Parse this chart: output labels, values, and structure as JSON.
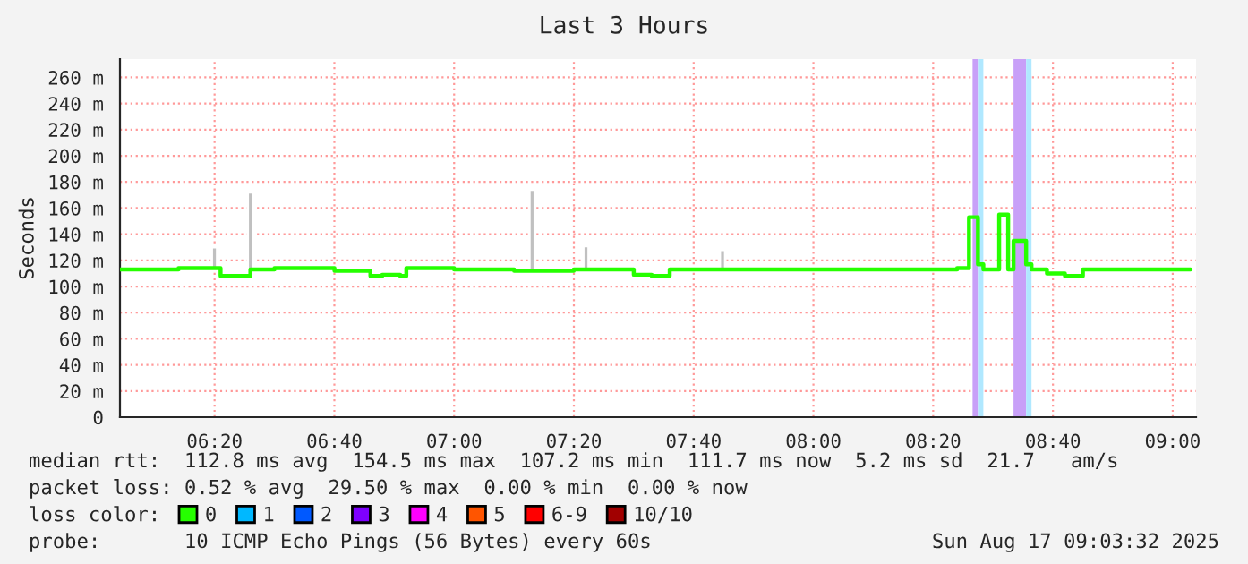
{
  "chart_data": {
    "type": "step",
    "title": "Last 3 Hours",
    "ylabel": "Seconds",
    "xlim": [
      6.07,
      9.065
    ],
    "ylim": [
      0,
      274
    ],
    "xticks": [
      {
        "value": 6.3333,
        "label": "06:20"
      },
      {
        "value": 6.6667,
        "label": "06:40"
      },
      {
        "value": 7.0,
        "label": "07:00"
      },
      {
        "value": 7.3333,
        "label": "07:20"
      },
      {
        "value": 7.6667,
        "label": "07:40"
      },
      {
        "value": 8.0,
        "label": "08:00"
      },
      {
        "value": 8.3333,
        "label": "08:20"
      },
      {
        "value": 8.6667,
        "label": "08:40"
      },
      {
        "value": 9.0,
        "label": "09:00"
      }
    ],
    "yticks": [
      0,
      {
        "value": 20,
        "label": "20 m"
      },
      {
        "value": 40,
        "label": "40 m"
      },
      {
        "value": 60,
        "label": "60 m"
      },
      {
        "value": 80,
        "label": "80 m"
      },
      {
        "value": 100,
        "label": "100 m"
      },
      {
        "value": 120,
        "label": "120 m"
      },
      {
        "value": 140,
        "label": "140 m"
      },
      {
        "value": 160,
        "label": "160 m"
      },
      {
        "value": 180,
        "label": "180 m"
      },
      {
        "value": 200,
        "label": "200 m"
      },
      {
        "value": 220,
        "label": "220 m"
      },
      {
        "value": 240,
        "label": "240 m"
      },
      {
        "value": 260,
        "label": "260 m"
      }
    ],
    "grid": true,
    "legend": "bottom",
    "legend_title": "loss color:",
    "bands": [
      {
        "axis": "x",
        "from": 8.443,
        "to": 8.458,
        "color": "#c8a0f8"
      },
      {
        "axis": "x",
        "from": 8.458,
        "to": 8.473,
        "color": "#b0e8ff"
      },
      {
        "axis": "x",
        "from": 8.557,
        "to": 8.592,
        "color": "#c8a0f8"
      },
      {
        "axis": "x",
        "from": 8.592,
        "to": 8.607,
        "color": "#b0e8ff"
      }
    ],
    "series": [
      {
        "type": "bar",
        "color": "#c0c0c0",
        "x": [
          6.333,
          6.433,
          7.217,
          7.367,
          7.747
        ],
        "base": [
          112,
          112,
          112,
          112,
          112
        ],
        "values": [
          18,
          60,
          62,
          19,
          16
        ]
      },
      {
        "name": "0",
        "color": "#26ff00",
        "x": [
          6.07,
          6.167,
          6.233,
          6.35,
          6.433,
          6.5,
          6.667,
          6.767,
          6.8,
          6.85,
          6.867,
          7.0,
          7.167,
          7.333,
          7.5,
          7.55,
          7.6,
          7.833,
          8.0,
          8.167,
          8.333,
          8.4,
          8.433,
          8.458,
          8.473,
          8.517,
          8.542,
          8.557,
          8.592,
          8.607,
          8.65,
          8.7,
          8.75,
          8.917,
          9.05
        ],
        "values": [
          113,
          113,
          114,
          108,
          113,
          114,
          112,
          108,
          109,
          108,
          114,
          113,
          112,
          113,
          109,
          108,
          113,
          113,
          113,
          113,
          113,
          114,
          153,
          117,
          113,
          155,
          113,
          135,
          117,
          113,
          110,
          108,
          113,
          113,
          113
        ]
      },
      {
        "name": "1",
        "color": "#00b8ff"
      },
      {
        "name": "2",
        "color": "#0059ff"
      },
      {
        "name": "3",
        "color": "#7e00ff"
      },
      {
        "name": "4",
        "color": "#ff00ff"
      },
      {
        "name": "5",
        "color": "#ff5500"
      },
      {
        "name": "6-9",
        "color": "#ff0000"
      },
      {
        "name": "10/10",
        "color": "#a10000"
      }
    ],
    "annotations": [
      "median rtt:  112.8 ms avg  154.5 ms max  107.2 ms min  111.7 ms now  5.2 ms sd  21.7   am/s",
      "packet loss: 0.52 % avg  29.50 % max  0.00 % min  0.00 % now",
      "probe:       10 ICMP Echo Pings (56 Bytes) every 60s",
      "Sun Aug 17 09:03:32 2025"
    ]
  }
}
